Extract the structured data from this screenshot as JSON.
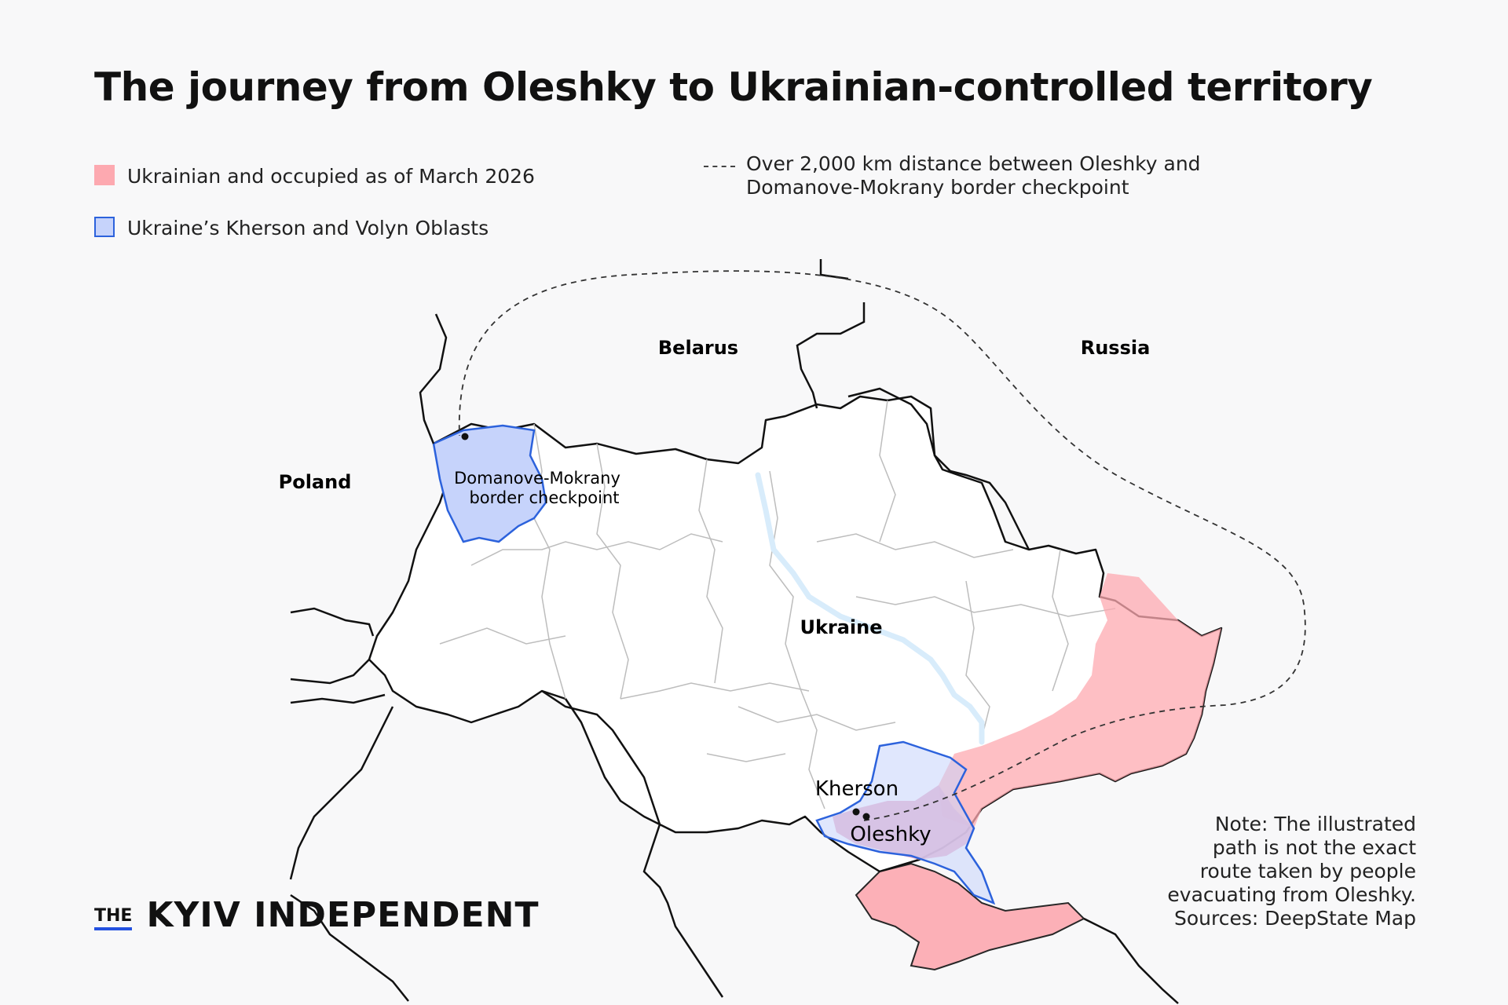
{
  "title": "The journey from Oleshky to Ukrainian-controlled territory",
  "legend": {
    "occupied": "Ukrainian and occupied as of March 2026",
    "oblasts": "Ukraine’s Kherson and Volyn Oblasts",
    "route_line1": "Over 2,000 km distance between Oleshky and",
    "route_line2": "Domanove-Mokrany border checkpoint"
  },
  "colors": {
    "occupied": "#fda9b0",
    "oblast_fill": "#c6d3fb",
    "oblast_stroke": "#2c62dc",
    "river": "#d8ecfb"
  },
  "map_labels": {
    "belarus": "Belarus",
    "russia": "Russia",
    "poland": "Poland",
    "ukraine": "Ukraine",
    "kherson": "Kherson",
    "oleshky": "Oleshky",
    "checkpoint_line1": "Domanove-Mokrany",
    "checkpoint_line2": "border checkpoint"
  },
  "note": [
    "Note: The illustrated",
    "path is not the exact",
    "route taken by people",
    "evacuating from Oleshky.",
    "Sources: DeepState Map"
  ],
  "brand": {
    "the": "THE",
    "name": "KYIV INDEPENDENT"
  }
}
